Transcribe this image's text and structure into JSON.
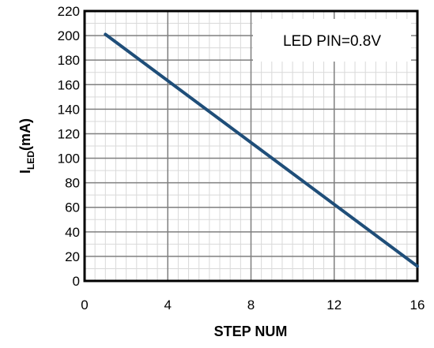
{
  "chart_data": {
    "type": "line",
    "xlabel": "STEP NUM",
    "ylabel_main": "I",
    "ylabel_sub": "LED",
    "ylabel_unit": "(mA)",
    "xlim": [
      0,
      16
    ],
    "ylim": [
      0,
      220
    ],
    "xticks": [
      "0",
      "4",
      "8",
      "12",
      "16"
    ],
    "yticks": [
      "0",
      "20",
      "40",
      "60",
      "80",
      "100",
      "120",
      "140",
      "160",
      "180",
      "200",
      "220"
    ],
    "grid": true,
    "annotation": "LED PIN=0.8V",
    "series": [
      {
        "color": "#1f4e79",
        "x": [
          1,
          16
        ],
        "y": [
          201,
          12
        ]
      }
    ]
  }
}
